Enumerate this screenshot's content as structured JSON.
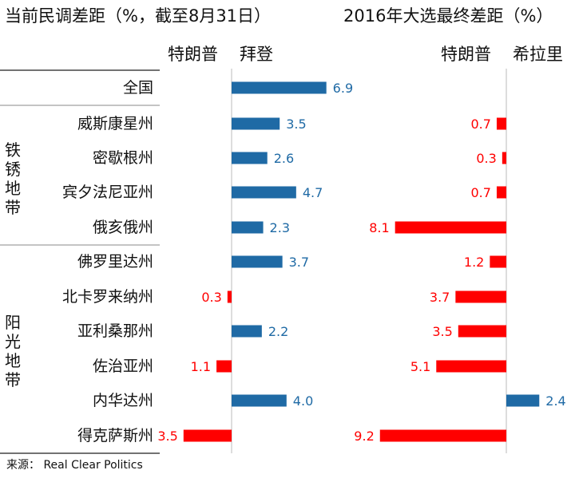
{
  "title_left": "当前民调差距（%，截至8月31日）",
  "title_right": "2016年大选最终差距（%）",
  "sub_trump_1": "特朗普",
  "sub_biden": "拜登",
  "sub_trump_2": "特朗普",
  "sub_hillary": "希拉里",
  "group_rust": "铁锈地带",
  "group_sun": "阳光地带",
  "source": "来源：  Real Clear Politics",
  "colors": {
    "dem": "#1f6aa5",
    "rep": "#ff0000"
  },
  "chart_data": [
    {
      "type": "bar",
      "title": "当前民调差距（%，截至8月31日）",
      "categories": [
        "全国",
        "威斯康星州",
        "密歇根州",
        "宾夕法尼亚州",
        "俄亥俄州",
        "佛罗里达州",
        "北卡罗来纳州",
        "亚利桑那州",
        "佐治亚州",
        "内华达州",
        "得克萨斯州"
      ],
      "series": [
        {
          "name": "拜登",
          "values": [
            6.9,
            3.5,
            2.6,
            4.7,
            2.3,
            3.7,
            null,
            2.2,
            null,
            4.0,
            null
          ]
        },
        {
          "name": "特朗普",
          "values": [
            null,
            null,
            null,
            null,
            null,
            null,
            0.3,
            null,
            1.1,
            null,
            3.5
          ]
        }
      ]
    },
    {
      "type": "bar",
      "title": "2016年大选最终差距（%）",
      "categories": [
        "全国",
        "威斯康星州",
        "密歇根州",
        "宾夕法尼亚州",
        "俄亥俄州",
        "佛罗里达州",
        "北卡罗来纳州",
        "亚利桑那州",
        "佐治亚州",
        "内华达州",
        "得克萨斯州"
      ],
      "series": [
        {
          "name": "特朗普",
          "values": [
            null,
            0.7,
            0.3,
            0.7,
            8.1,
            1.2,
            3.7,
            3.5,
            5.1,
            null,
            9.2
          ]
        },
        {
          "name": "希拉里",
          "values": [
            null,
            null,
            null,
            null,
            null,
            null,
            null,
            null,
            null,
            2.4,
            null
          ]
        }
      ]
    }
  ]
}
